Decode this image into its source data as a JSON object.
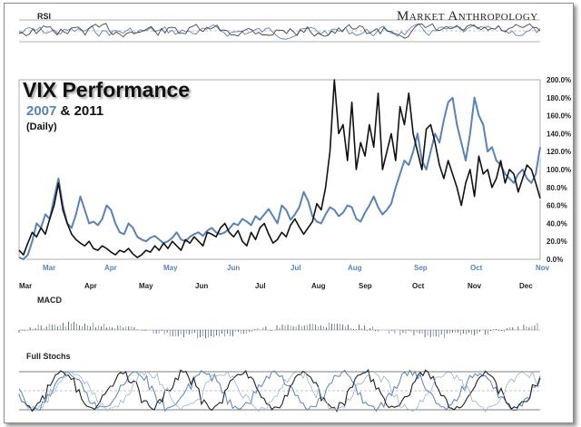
{
  "brand": "Market Anthropology",
  "title": "VIX Performance",
  "subtitle": {
    "year_a": "2007",
    "amp": "&",
    "year_b": "2011"
  },
  "frequency": "(Daily)",
  "panels": {
    "rsi": "RSI",
    "macd": "MACD",
    "stochs": "Full Stochs"
  },
  "colors": {
    "series_2007": "#5a82b4",
    "series_2011": "#111111",
    "grid": "#c8c8c8",
    "panel_line": "#444444"
  },
  "chart_data": {
    "type": "line",
    "title": "VIX Performance",
    "subtitle": "2007 & 2011",
    "frequency": "(Daily)",
    "ylabel": "",
    "ylim": [
      0,
      200
    ],
    "yticks": [
      "0.0%",
      "20.0%",
      "40.0%",
      "60.0%",
      "80.0%",
      "100.0%",
      "120.0%",
      "140.0%",
      "160.0%",
      "180.0%",
      "200.0%"
    ],
    "x_axis_top": [
      "Mar",
      "Apr",
      "May",
      "Jun",
      "Jul",
      "Aug",
      "Sep",
      "Oct",
      "Nov"
    ],
    "x_axis_bottom": [
      "Mar",
      "Apr",
      "May",
      "Jun",
      "Jul",
      "Aug",
      "Sep",
      "Oct",
      "Nov",
      "Dec"
    ],
    "grid": false,
    "series": [
      {
        "name": "2007",
        "x": [
          0,
          2,
          4,
          6,
          8,
          10,
          12,
          14,
          16,
          18,
          20,
          22,
          24,
          26,
          28,
          30,
          32,
          34,
          36,
          38,
          40,
          42,
          44,
          46,
          48,
          50,
          52,
          54,
          56,
          58,
          60,
          62,
          64,
          66,
          68,
          70,
          72,
          74,
          76,
          78,
          80,
          82,
          84,
          86,
          88,
          90,
          92,
          94,
          96,
          98,
          100,
          102,
          104,
          106,
          108,
          110,
          112,
          114,
          116,
          118,
          120,
          122,
          124,
          126,
          128,
          130,
          132,
          134,
          136,
          138,
          140,
          142,
          144,
          146,
          148,
          150,
          152,
          154,
          156,
          158,
          160,
          162,
          164,
          166,
          168,
          170,
          172,
          174,
          176,
          178,
          180,
          182,
          184,
          186,
          188,
          190,
          192,
          194,
          196,
          198,
          200,
          202,
          204,
          206,
          208,
          210,
          212,
          214,
          216,
          218,
          220,
          222,
          224,
          226,
          228,
          230,
          232,
          234,
          236,
          238
        ],
        "values": [
          2,
          0,
          5,
          20,
          40,
          35,
          50,
          45,
          68,
          90,
          60,
          40,
          35,
          50,
          70,
          55,
          40,
          42,
          38,
          45,
          60,
          55,
          40,
          30,
          28,
          40,
          35,
          25,
          22,
          20,
          24,
          26,
          22,
          18,
          20,
          24,
          30,
          22,
          20,
          25,
          28,
          30,
          26,
          32,
          35,
          30,
          28,
          30,
          34,
          40,
          38,
          45,
          42,
          38,
          48,
          44,
          50,
          56,
          48,
          40,
          60,
          55,
          44,
          50,
          58,
          75,
          65,
          48,
          42,
          40,
          50,
          58,
          55,
          48,
          52,
          60,
          58,
          45,
          42,
          52,
          60,
          70,
          58,
          50,
          55,
          62,
          80,
          95,
          110,
          105,
          120,
          140,
          110,
          100,
          120,
          140,
          130,
          155,
          175,
          180,
          150,
          130,
          110,
          140,
          180,
          160,
          150,
          120,
          125,
          110,
          105,
          95,
          90,
          85,
          95,
          100,
          90,
          85,
          95,
          125
        ],
        "y_units": "percent"
      },
      {
        "name": "2011",
        "x": [
          0,
          2,
          4,
          6,
          8,
          10,
          12,
          14,
          16,
          18,
          20,
          22,
          24,
          26,
          28,
          30,
          32,
          34,
          36,
          38,
          40,
          42,
          44,
          46,
          48,
          50,
          52,
          54,
          56,
          58,
          60,
          62,
          64,
          66,
          68,
          70,
          72,
          74,
          76,
          78,
          80,
          82,
          84,
          86,
          88,
          90,
          92,
          94,
          96,
          98,
          100,
          102,
          104,
          106,
          108,
          110,
          112,
          114,
          116,
          118,
          120,
          122,
          124,
          126,
          128,
          130,
          132,
          134,
          136,
          138,
          140,
          142,
          144,
          146,
          148,
          150,
          152,
          154,
          156,
          158,
          160,
          162,
          164,
          166,
          168,
          170,
          172,
          174,
          176,
          178,
          180,
          182,
          184,
          186,
          188,
          190,
          192,
          194,
          196,
          198,
          200,
          202,
          204,
          206,
          208,
          210,
          212,
          214,
          216,
          218,
          220,
          222,
          224,
          226,
          228,
          230,
          232,
          234,
          236,
          238
        ],
        "values": [
          10,
          5,
          18,
          30,
          25,
          35,
          28,
          45,
          60,
          85,
          55,
          40,
          28,
          22,
          18,
          15,
          20,
          12,
          10,
          15,
          12,
          8,
          5,
          10,
          8,
          12,
          6,
          2,
          5,
          10,
          8,
          15,
          10,
          18,
          12,
          20,
          15,
          10,
          22,
          18,
          25,
          20,
          15,
          30,
          28,
          25,
          35,
          40,
          30,
          25,
          32,
          20,
          15,
          30,
          22,
          35,
          40,
          28,
          18,
          22,
          30,
          25,
          38,
          45,
          36,
          28,
          35,
          42,
          62,
          55,
          80,
          120,
          200,
          140,
          150,
          110,
          175,
          100,
          130,
          115,
          150,
          125,
          185,
          100,
          120,
          140,
          110,
          170,
          150,
          185,
          140,
          120,
          100,
          145,
          150,
          130,
          105,
          90,
          110,
          95,
          80,
          60,
          85,
          100,
          70,
          115,
          95,
          100,
          80,
          90,
          110,
          85,
          100,
          95,
          75,
          90,
          105,
          100,
          85,
          68
        ],
        "y_units": "percent"
      }
    ]
  }
}
